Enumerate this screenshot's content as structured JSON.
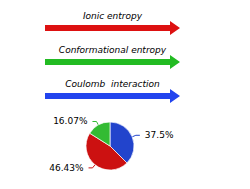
{
  "chart_data": {
    "type": "pie",
    "values": [
      37.5,
      46.43,
      16.07
    ],
    "value_labels": [
      "37.5%",
      "46.43%",
      "16.07%"
    ],
    "colors": [
      "#2244cc",
      "#cc1111",
      "#33bb33"
    ],
    "data_labels": true,
    "annotations": [
      {
        "text": "Ionic entropy",
        "color": "#dd1111"
      },
      {
        "text": "Conformational entropy",
        "color": "#22bb22"
      },
      {
        "text": "Coulomb  interaction",
        "color": "#2244ee"
      }
    ]
  }
}
